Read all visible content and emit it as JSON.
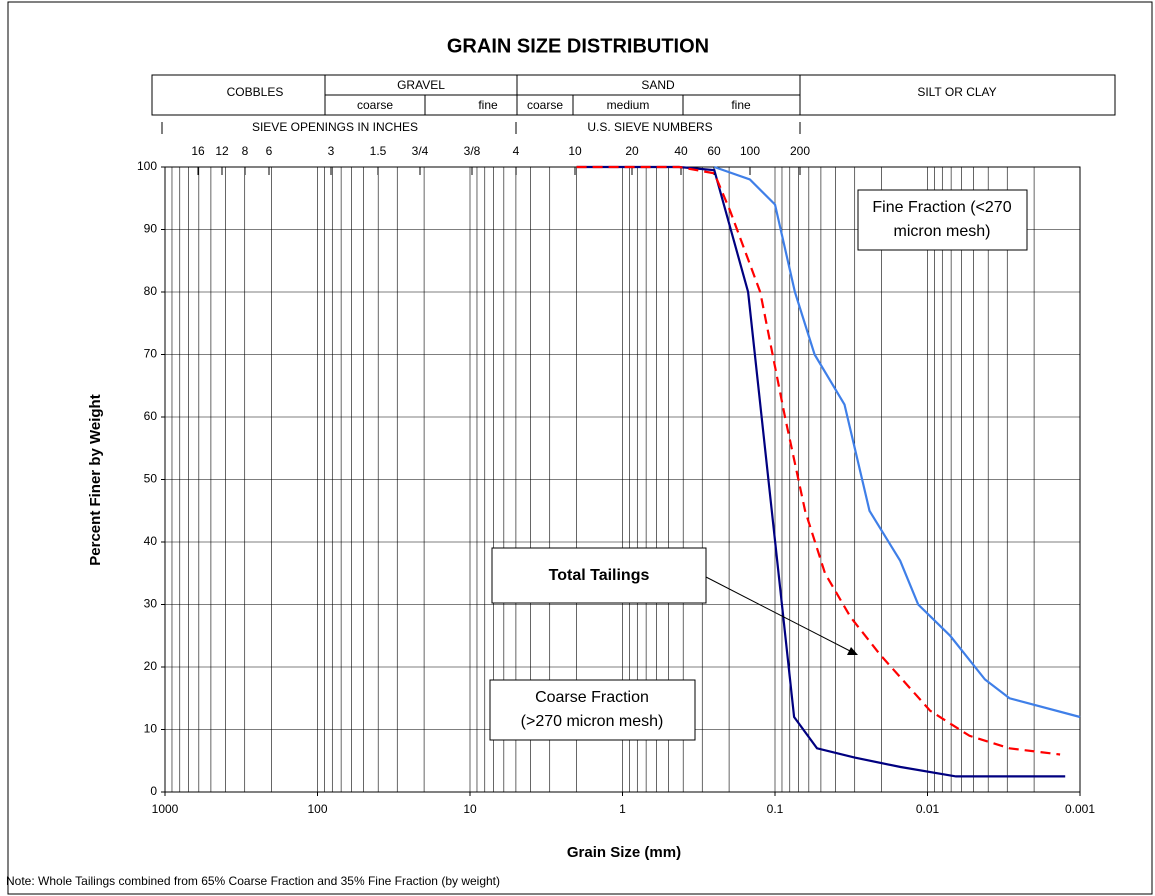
{
  "chart_data": {
    "type": "line",
    "title": "GRAIN SIZE DISTRIBUTION",
    "xlabel": "Grain Size (mm)",
    "ylabel": "Percent Finer by Weight",
    "note": "Note:  Whole Tailings combined from 65% Coarse Fraction and 35% Fine Fraction (by weight)",
    "xlog": true,
    "xlim": [
      1000,
      0.001
    ],
    "xticks": [
      1000,
      100,
      10,
      1,
      0.1,
      0.01,
      0.001
    ],
    "ylim": [
      0,
      100
    ],
    "yticks": [
      0,
      10,
      20,
      30,
      40,
      50,
      60,
      70,
      80,
      90,
      100
    ],
    "grid": true,
    "header": {
      "cobbles": "COBBLES",
      "gravel": "GRAVEL",
      "gravel_coarse": "coarse",
      "gravel_fine": "fine",
      "sand": "SAND",
      "sand_coarse": "coarse",
      "sand_medium": "medium",
      "sand_fine": "fine",
      "silt": "SILT OR CLAY",
      "sieve_inches": "SIEVE OPENINGS IN INCHES",
      "sieve_numbers": "U.S. SIEVE NUMBERS",
      "sieve_labels": [
        "16",
        "12",
        "8",
        "6",
        "3",
        "1.5",
        "3/4",
        "3/8",
        "4",
        "10",
        "20",
        "40",
        "60",
        "100",
        "200"
      ]
    },
    "annotations": {
      "fine": [
        "Fine Fraction (<270",
        "micron mesh)"
      ],
      "total": "Total Tailings",
      "coarse": [
        "Coarse Fraction",
        "(>270 micron mesh)"
      ]
    },
    "series": [
      {
        "name": "Coarse Fraction",
        "color": "#000080",
        "style": "solid",
        "x": [
          2,
          0.85,
          0.425,
          0.25,
          0.15,
          0.075,
          0.053,
          0.03,
          0.015,
          0.0065,
          0.00125
        ],
        "values": [
          100,
          100,
          100,
          99.5,
          80,
          12,
          7,
          5.5,
          4,
          2.5,
          2.5
        ]
      },
      {
        "name": "Total Tailings",
        "color": "#ff0000",
        "style": "dashed",
        "x": [
          2,
          0.85,
          0.425,
          0.25,
          0.197,
          0.125,
          0.086,
          0.0635,
          0.047,
          0.032,
          0.0205,
          0.0096,
          0.0053,
          0.0029,
          0.00135
        ],
        "values": [
          100,
          100,
          100,
          99,
          93,
          80,
          60,
          45,
          35,
          28,
          22,
          13,
          9,
          7,
          6
        ]
      },
      {
        "name": "Fine Fraction",
        "color": "#3f7fe8",
        "style": "solid",
        "x": [
          0.25,
          0.146,
          0.1,
          0.074,
          0.055,
          0.035,
          0.024,
          0.0151,
          0.0115,
          0.0071,
          0.0042,
          0.0029,
          0.001
        ],
        "values": [
          100,
          98,
          94,
          80,
          70,
          62,
          45,
          37,
          30,
          25,
          18,
          15,
          12
        ]
      }
    ]
  }
}
